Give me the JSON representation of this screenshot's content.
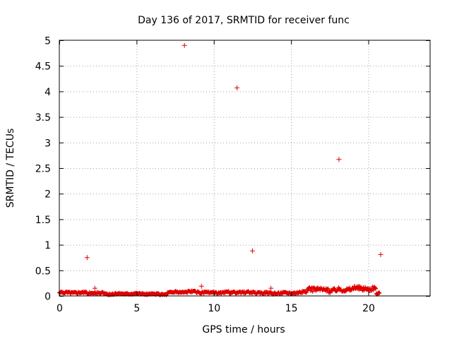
{
  "chart_data": {
    "type": "scatter",
    "title": "Day 136 of 2017, SRMTID for receiver func",
    "xlabel": "GPS time / hours",
    "ylabel": "SRMTID / TECUs",
    "xlim": [
      0,
      24
    ],
    "ylim": [
      0,
      5
    ],
    "xticks": [
      0,
      5,
      10,
      15,
      20
    ],
    "xtick_labels": [
      "0",
      "5",
      "10",
      "15",
      "20"
    ],
    "yticks": [
      0,
      0.5,
      1,
      1.5,
      2,
      2.5,
      3,
      3.5,
      4,
      4.5,
      5
    ],
    "ytick_labels": [
      "0",
      "0.5",
      "1",
      "1.5",
      "2",
      "2.5",
      "3",
      "3.5",
      "4",
      "4.5",
      "5"
    ],
    "grid": true,
    "marker": "+",
    "series_color": "#e00000",
    "outliers": [
      {
        "x": 1.8,
        "y": 0.75
      },
      {
        "x": 2.3,
        "y": 0.15
      },
      {
        "x": 8.1,
        "y": 4.9
      },
      {
        "x": 9.2,
        "y": 0.19
      },
      {
        "x": 11.5,
        "y": 4.07
      },
      {
        "x": 12.5,
        "y": 0.88
      },
      {
        "x": 13.7,
        "y": 0.15
      },
      {
        "x": 18.1,
        "y": 2.67
      },
      {
        "x": 20.8,
        "y": 0.81
      }
    ],
    "dense_series": {
      "x_start": 0.0,
      "x_end": 20.75,
      "step": 0.04,
      "description": "continuous band of low values with drop near end",
      "segments": [
        {
          "x0": 0.0,
          "x1": 3.0,
          "base": 0.06,
          "amp": 0.025
        },
        {
          "x0": 3.0,
          "x1": 7.0,
          "base": 0.04,
          "amp": 0.02
        },
        {
          "x0": 7.0,
          "x1": 11.0,
          "base": 0.07,
          "amp": 0.025
        },
        {
          "x0": 11.0,
          "x1": 16.0,
          "base": 0.06,
          "amp": 0.025
        },
        {
          "x0": 16.0,
          "x1": 20.5,
          "base": 0.13,
          "amp": 0.05
        },
        {
          "x0": 20.5,
          "x1": 20.75,
          "base": 0.05,
          "amp": 0.04
        }
      ]
    }
  }
}
